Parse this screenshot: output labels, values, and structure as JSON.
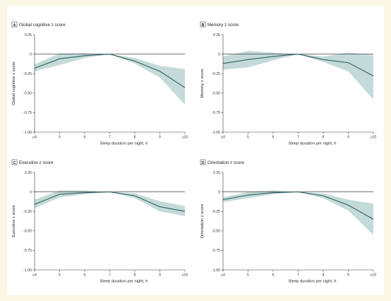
{
  "colors": {
    "band": "#b9d3d2",
    "line": "#2e5e5c",
    "background": "#fbf7e7"
  },
  "chart_data": [
    {
      "type": "line",
      "panel_label": "A",
      "title": "Global cognitive z score",
      "xlabel": "Sleep duration per night, h",
      "ylabel": "Global cognitive z score",
      "categories": [
        "≤4",
        "5",
        "6",
        "7",
        "8",
        "9",
        "≥10"
      ],
      "ylim": [
        -1.0,
        0.25
      ],
      "yticks": [
        "0.25",
        "0",
        "-0.25",
        "-0.50",
        "-0.75",
        "-1.00"
      ],
      "estimate": [
        -0.18,
        -0.06,
        -0.02,
        0,
        -0.09,
        -0.22,
        -0.43
      ],
      "ci_lower": [
        -0.22,
        -0.14,
        -0.05,
        0,
        -0.12,
        -0.3,
        -0.65
      ],
      "ci_upper": [
        -0.13,
        0.01,
        0.01,
        0,
        -0.05,
        -0.15,
        -0.19
      ]
    },
    {
      "type": "line",
      "panel_label": "B",
      "title": "Memory z score",
      "xlabel": "Sleep duration per night, h",
      "ylabel": "Memory z score",
      "categories": [
        "≤4",
        "5",
        "6",
        "7",
        "8",
        "9",
        "≥10"
      ],
      "ylim": [
        -1.0,
        0.25
      ],
      "yticks": [
        "0.25",
        "0",
        "-0.25",
        "-0.50",
        "-0.75",
        "-1.00"
      ],
      "estimate": [
        -0.12,
        -0.07,
        -0.03,
        0,
        -0.07,
        -0.11,
        -0.28
      ],
      "ci_lower": [
        -0.2,
        -0.17,
        -0.08,
        0,
        -0.1,
        -0.22,
        -0.58
      ],
      "ci_upper": [
        -0.03,
        0.04,
        0.02,
        0,
        -0.03,
        0.02,
        -0.01
      ]
    },
    {
      "type": "line",
      "panel_label": "C",
      "title": "Executive z score",
      "xlabel": "Sleep duration per night, h",
      "ylabel": "Executive z score",
      "categories": [
        "≤4",
        "5",
        "6",
        "7",
        "8",
        "9",
        "≥10"
      ],
      "ylim": [
        -1.0,
        0.25
      ],
      "yticks": [
        "0.25",
        "0",
        "-0.25",
        "-0.50",
        "-0.75",
        "-1.00"
      ],
      "estimate": [
        -0.16,
        -0.03,
        -0.01,
        0,
        -0.05,
        -0.19,
        -0.25
      ],
      "ci_lower": [
        -0.21,
        -0.07,
        -0.03,
        0,
        -0.08,
        -0.25,
        -0.31
      ],
      "ci_upper": [
        -0.1,
        0.02,
        0.02,
        0,
        -0.02,
        -0.12,
        -0.18
      ]
    },
    {
      "type": "line",
      "panel_label": "D",
      "title": "Orientation z score",
      "xlabel": "Sleep duration per night, h",
      "ylabel": "Orientation z score",
      "categories": [
        "≤4",
        "5",
        "6",
        "7",
        "8",
        "9",
        "≥10"
      ],
      "ylim": [
        -1.0,
        0.25
      ],
      "yticks": [
        "0.25",
        "0",
        "-0.25",
        "-0.50",
        "-0.75",
        "-1.00"
      ],
      "estimate": [
        -0.1,
        -0.04,
        -0.01,
        0,
        -0.05,
        -0.17,
        -0.35
      ],
      "ci_lower": [
        -0.13,
        -0.08,
        -0.03,
        0,
        -0.08,
        -0.24,
        -0.55
      ],
      "ci_upper": [
        -0.07,
        0.0,
        0.02,
        0,
        -0.02,
        -0.1,
        -0.15
      ]
    }
  ]
}
